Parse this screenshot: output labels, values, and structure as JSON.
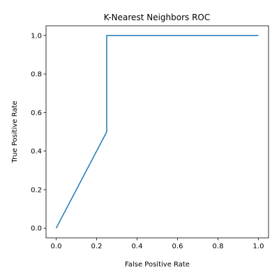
{
  "chart_data": {
    "type": "line",
    "title": "K-Nearest Neighbors ROC",
    "xlabel": "False Positive Rate",
    "ylabel": "True Positive Rate",
    "xlim": [
      -0.05,
      1.05
    ],
    "ylim": [
      -0.05,
      1.05
    ],
    "xticks": [
      0.0,
      0.2,
      0.4,
      0.6,
      0.8,
      1.0
    ],
    "yticks": [
      0.0,
      0.2,
      0.4,
      0.6,
      0.8,
      1.0
    ],
    "xtick_labels": [
      "0.0",
      "0.2",
      "0.4",
      "0.6",
      "0.8",
      "1.0"
    ],
    "ytick_labels": [
      "0.0",
      "0.2",
      "0.4",
      "0.6",
      "0.8",
      "1.0"
    ],
    "grid": false,
    "legend": "none",
    "line_color": "#1f77b4",
    "series": [
      {
        "x": [
          0.0,
          0.25,
          0.25,
          1.0
        ],
        "y": [
          0.0,
          0.5,
          1.0,
          1.0
        ]
      }
    ]
  }
}
